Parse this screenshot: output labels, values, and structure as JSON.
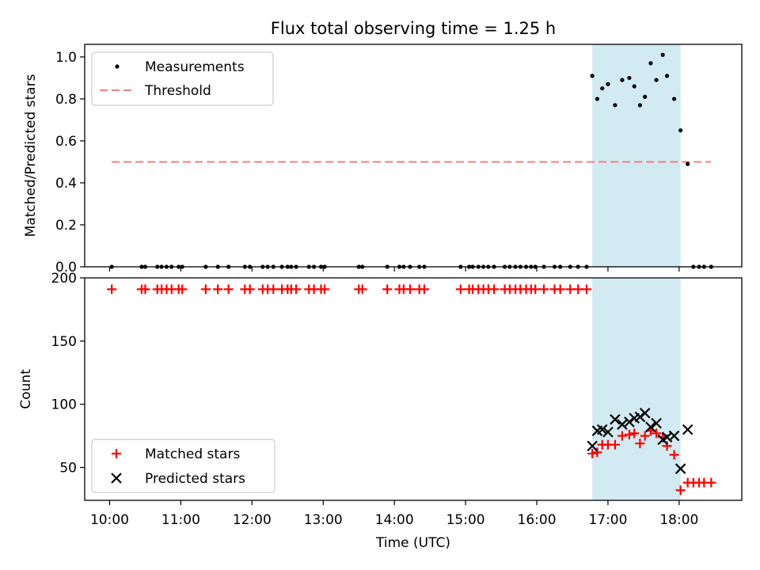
{
  "chart_data": [
    {
      "type": "scatter",
      "title": "Flux total observing time = 1.25 h",
      "ylabel": "Matched/Predicted stars",
      "ylim": [
        0,
        1.06
      ],
      "yticks": [
        0.0,
        0.2,
        0.4,
        0.6,
        0.8,
        1.0
      ],
      "ytick_labels": [
        "0.0",
        "0.2",
        "0.4",
        "0.6",
        "0.8",
        "1.0"
      ],
      "shaded_span": [
        16.78,
        18.02
      ],
      "shaded_color": "#add8e6",
      "legend_position": "upper left",
      "series": [
        {
          "name": "Measurements",
          "kind": "scatter",
          "marker": "dot",
          "color": "#000000",
          "x": [
            10.03,
            10.45,
            10.5,
            10.67,
            10.73,
            10.8,
            10.87,
            10.97,
            11.02,
            11.35,
            11.52,
            11.67,
            11.9,
            11.97,
            12.15,
            12.22,
            12.3,
            12.42,
            12.5,
            12.55,
            12.62,
            12.8,
            12.87,
            12.97,
            13.02,
            13.5,
            13.55,
            13.9,
            14.07,
            14.13,
            14.22,
            14.35,
            14.42,
            14.93,
            15.05,
            15.1,
            15.18,
            15.25,
            15.32,
            15.4,
            15.55,
            15.62,
            15.7,
            15.77,
            15.85,
            15.92,
            15.98,
            16.1,
            16.25,
            16.33,
            16.47,
            16.58,
            16.7,
            16.78,
            16.85,
            16.92,
            17.0,
            17.1,
            17.2,
            17.3,
            17.37,
            17.45,
            17.52,
            17.6,
            17.68,
            17.77,
            17.83,
            17.93,
            18.02,
            18.12,
            18.2,
            18.28,
            18.35,
            18.45
          ],
          "y": [
            0,
            0,
            0,
            0,
            0,
            0,
            0,
            0,
            0,
            0,
            0,
            0,
            0,
            0,
            0,
            0,
            0,
            0,
            0,
            0,
            0,
            0,
            0,
            0,
            0,
            0,
            0,
            0,
            0,
            0,
            0,
            0,
            0,
            0,
            0,
            0,
            0,
            0,
            0,
            0,
            0,
            0,
            0,
            0,
            0,
            0,
            0,
            0,
            0,
            0,
            0,
            0,
            0,
            0.91,
            0.8,
            0.85,
            0.87,
            0.77,
            0.89,
            0.9,
            0.86,
            0.77,
            0.81,
            0.97,
            0.89,
            1.01,
            0.91,
            0.8,
            0.65,
            0.49,
            0,
            0,
            0,
            0
          ]
        },
        {
          "name": "Threshold",
          "kind": "line",
          "dashed": true,
          "color": "#f08080",
          "x": [
            10.03,
            18.45
          ],
          "y": [
            0.5,
            0.5
          ]
        }
      ]
    },
    {
      "type": "scatter",
      "xlabel": "Time (UTC)",
      "ylabel": "Count",
      "ylim": [
        24,
        200
      ],
      "yticks": [
        50,
        100,
        150,
        200
      ],
      "ytick_labels": [
        "50",
        "100",
        "150",
        "200"
      ],
      "xlim": [
        9.65,
        18.88
      ],
      "xticks": [
        10,
        11,
        12,
        13,
        14,
        15,
        16,
        17,
        18
      ],
      "xtick_labels": [
        "10:00",
        "11:00",
        "12:00",
        "13:00",
        "14:00",
        "15:00",
        "16:00",
        "17:00",
        "18:00"
      ],
      "shaded_span": [
        16.78,
        18.02
      ],
      "shaded_color": "#add8e6",
      "legend_position": "lower left",
      "series": [
        {
          "name": "Matched stars",
          "marker": "plus",
          "color": "#ff0000",
          "x": [
            10.03,
            10.45,
            10.5,
            10.67,
            10.73,
            10.8,
            10.87,
            10.97,
            11.02,
            11.35,
            11.52,
            11.67,
            11.9,
            11.97,
            12.15,
            12.22,
            12.3,
            12.42,
            12.5,
            12.55,
            12.62,
            12.8,
            12.87,
            12.97,
            13.02,
            13.5,
            13.55,
            13.9,
            14.07,
            14.13,
            14.22,
            14.35,
            14.42,
            14.93,
            15.05,
            15.1,
            15.18,
            15.25,
            15.32,
            15.4,
            15.55,
            15.62,
            15.7,
            15.77,
            15.85,
            15.92,
            15.98,
            16.1,
            16.25,
            16.33,
            16.47,
            16.58,
            16.7,
            16.78,
            16.85,
            16.92,
            17.0,
            17.1,
            17.2,
            17.3,
            17.37,
            17.45,
            17.52,
            17.6,
            17.68,
            17.77,
            17.83,
            17.93,
            18.02,
            18.12,
            18.2,
            18.28,
            18.35,
            18.45
          ],
          "y": [
            191,
            191,
            191,
            191,
            191,
            191,
            191,
            191,
            191,
            191,
            191,
            191,
            191,
            191,
            191,
            191,
            191,
            191,
            191,
            191,
            191,
            191,
            191,
            191,
            191,
            191,
            191,
            191,
            191,
            191,
            191,
            191,
            191,
            191,
            191,
            191,
            191,
            191,
            191,
            191,
            191,
            191,
            191,
            191,
            191,
            191,
            191,
            191,
            191,
            191,
            191,
            191,
            191,
            61,
            62,
            68,
            68,
            68,
            75,
            76,
            77,
            69,
            75,
            79,
            77,
            74,
            67,
            60,
            32,
            38,
            38,
            38,
            38,
            38
          ]
        },
        {
          "name": "Predicted stars",
          "marker": "x",
          "color": "#000000",
          "x": [
            16.78,
            16.85,
            16.92,
            17.0,
            17.1,
            17.2,
            17.3,
            17.37,
            17.45,
            17.52,
            17.6,
            17.68,
            17.77,
            17.83,
            17.93,
            18.02,
            18.12
          ],
          "y": [
            67,
            79,
            80,
            78,
            88,
            84,
            86,
            89,
            90,
            93,
            82,
            85,
            72,
            74,
            75,
            49,
            80
          ]
        }
      ]
    }
  ]
}
